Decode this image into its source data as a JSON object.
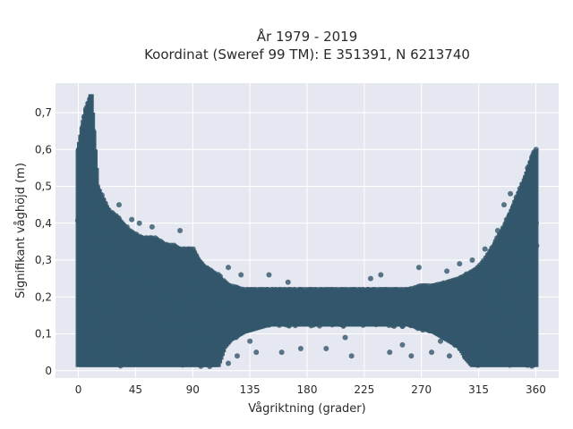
{
  "chart_data": {
    "type": "scatter",
    "title": "År 1979 - 2019",
    "subtitle": "Koordinat (Sweref 99 TM): E 351391, N 6213740",
    "xlabel": "Vågriktning (grader)",
    "ylabel": "Signifikant våghöjd (m)",
    "xlim": [
      -18,
      378
    ],
    "ylim": [
      -0.02,
      0.78
    ],
    "x_ticks": [
      0,
      45,
      90,
      135,
      180,
      225,
      270,
      315,
      360
    ],
    "y_ticks": [
      0,
      0.1,
      0.2,
      0.3,
      0.4,
      0.5,
      0.6,
      0.7
    ],
    "y_tick_labels": [
      "0",
      "0,1",
      "0,2",
      "0,3",
      "0,4",
      "0,5",
      "0,6",
      "0,7"
    ],
    "grid": true,
    "marker_color": "#33566b",
    "background_color": "#e5e8f0",
    "envelope": {
      "direction": [
        0,
        2,
        4,
        6,
        8,
        10,
        15,
        20,
        25,
        30,
        35,
        40,
        45,
        50,
        55,
        60,
        65,
        70,
        75,
        80,
        85,
        90,
        95,
        100,
        105,
        110,
        115,
        120,
        130,
        140,
        150,
        160,
        170,
        180,
        190,
        200,
        210,
        220,
        230,
        240,
        250,
        260,
        270,
        280,
        290,
        300,
        305,
        310,
        315,
        320,
        325,
        330,
        335,
        340,
        345,
        350,
        355,
        358,
        360
      ],
      "min_height": [
        0.01,
        0.01,
        0.01,
        0.01,
        0.01,
        0.01,
        0.01,
        0.01,
        0.01,
        0.01,
        0.01,
        0.01,
        0.01,
        0.01,
        0.01,
        0.01,
        0.01,
        0.01,
        0.01,
        0.01,
        0.01,
        0.01,
        0.01,
        0.01,
        0.01,
        0.01,
        0.06,
        0.08,
        0.1,
        0.11,
        0.12,
        0.12,
        0.12,
        0.12,
        0.12,
        0.12,
        0.12,
        0.12,
        0.12,
        0.12,
        0.12,
        0.12,
        0.11,
        0.1,
        0.08,
        0.06,
        0.03,
        0.01,
        0.01,
        0.01,
        0.01,
        0.01,
        0.01,
        0.01,
        0.01,
        0.01,
        0.01,
        0.01,
        0.01
      ],
      "max_height": [
        0.6,
        0.64,
        0.68,
        0.71,
        0.73,
        0.75,
        0.5,
        0.46,
        0.43,
        0.42,
        0.4,
        0.38,
        0.37,
        0.36,
        0.36,
        0.36,
        0.35,
        0.34,
        0.34,
        0.33,
        0.33,
        0.33,
        0.3,
        0.28,
        0.27,
        0.26,
        0.24,
        0.23,
        0.22,
        0.22,
        0.22,
        0.22,
        0.22,
        0.22,
        0.22,
        0.22,
        0.22,
        0.22,
        0.22,
        0.22,
        0.22,
        0.22,
        0.23,
        0.23,
        0.24,
        0.25,
        0.26,
        0.27,
        0.28,
        0.3,
        0.33,
        0.36,
        0.39,
        0.43,
        0.47,
        0.51,
        0.56,
        0.59,
        0.6
      ]
    },
    "outliers": [
      {
        "x": 32,
        "y": 0.45
      },
      {
        "x": 42,
        "y": 0.41
      },
      {
        "x": 48,
        "y": 0.4
      },
      {
        "x": 58,
        "y": 0.39
      },
      {
        "x": 80,
        "y": 0.38
      },
      {
        "x": 118,
        "y": 0.28
      },
      {
        "x": 128,
        "y": 0.26
      },
      {
        "x": 150,
        "y": 0.26
      },
      {
        "x": 165,
        "y": 0.24
      },
      {
        "x": 230,
        "y": 0.25
      },
      {
        "x": 238,
        "y": 0.26
      },
      {
        "x": 268,
        "y": 0.28
      },
      {
        "x": 290,
        "y": 0.27
      },
      {
        "x": 300,
        "y": 0.29
      },
      {
        "x": 310,
        "y": 0.3
      },
      {
        "x": 320,
        "y": 0.33
      },
      {
        "x": 330,
        "y": 0.38
      },
      {
        "x": 335,
        "y": 0.45
      },
      {
        "x": 340,
        "y": 0.48
      },
      {
        "x": 125,
        "y": 0.04
      },
      {
        "x": 140,
        "y": 0.05
      },
      {
        "x": 160,
        "y": 0.05
      },
      {
        "x": 175,
        "y": 0.06
      },
      {
        "x": 195,
        "y": 0.06
      },
      {
        "x": 215,
        "y": 0.04
      },
      {
        "x": 245,
        "y": 0.05
      },
      {
        "x": 262,
        "y": 0.04
      },
      {
        "x": 278,
        "y": 0.05
      },
      {
        "x": 292,
        "y": 0.04
      },
      {
        "x": 300,
        "y": 0.06
      },
      {
        "x": 118,
        "y": 0.02
      },
      {
        "x": 135,
        "y": 0.08
      },
      {
        "x": 210,
        "y": 0.09
      },
      {
        "x": 255,
        "y": 0.07
      },
      {
        "x": 285,
        "y": 0.08
      }
    ]
  }
}
